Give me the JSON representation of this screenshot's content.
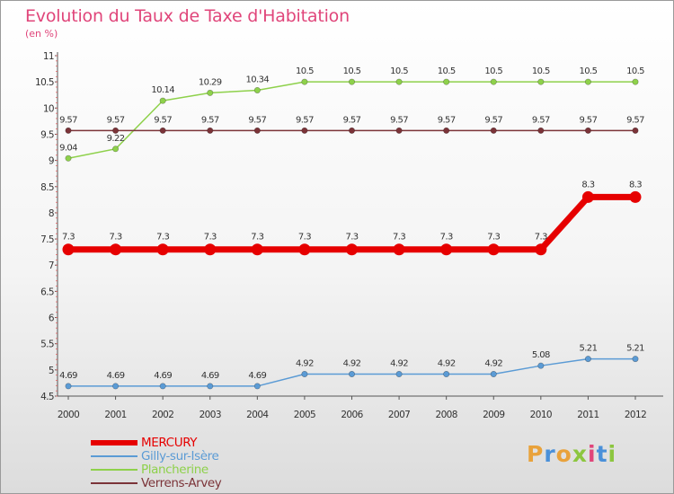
{
  "header": {
    "title": "Evolution du Taux de Taxe d'Habitation",
    "unit": "(en %)"
  },
  "logo": {
    "text": "Proxiti",
    "colors": [
      "#e9a23b",
      "#4a90d9",
      "#e9a23b",
      "#8cc63f",
      "#e0457a",
      "#4a90d9",
      "#8cc63f"
    ]
  },
  "chart_data": {
    "type": "line",
    "title": "Evolution du Taux de Taxe d'Habitation",
    "ylabel": "(en %)",
    "xlabel": "",
    "ylim": [
      4.5,
      11
    ],
    "yticks": [
      {
        "v": 4.5,
        "t": "4.5"
      },
      {
        "v": 5,
        "t": "5"
      },
      {
        "v": 5.5,
        "t": "5.5"
      },
      {
        "v": 6,
        "t": "6"
      },
      {
        "v": 6.5,
        "t": "6.5"
      },
      {
        "v": 7,
        "t": "7"
      },
      {
        "v": 7.5,
        "t": "7.5"
      },
      {
        "v": 8,
        "t": "8"
      },
      {
        "v": 8.5,
        "t": "8.5"
      },
      {
        "v": 9,
        "t": "9"
      },
      {
        "v": 9.5,
        "t": "9.5"
      },
      {
        "v": 10,
        "t": "10"
      },
      {
        "v": 10.5,
        "t": "10.5"
      },
      {
        "v": 11,
        "t": "11"
      }
    ],
    "categories": [
      "2000",
      "2001",
      "2002",
      "2003",
      "2004",
      "2005",
      "2006",
      "2007",
      "2008",
      "2009",
      "2010",
      "2011",
      "2012"
    ],
    "grid": false,
    "series": [
      {
        "name": "MERCURY",
        "color": "#e60000",
        "emphasis": true,
        "values": [
          7.3,
          7.3,
          7.3,
          7.3,
          7.3,
          7.3,
          7.3,
          7.3,
          7.3,
          7.3,
          7.3,
          8.3,
          8.3
        ],
        "labels": [
          "7.3",
          "7.3",
          "7.3",
          "7.3",
          "7.3",
          "7.3",
          "7.3",
          "7.3",
          "7.3",
          "7.3",
          "7.3",
          "8.3",
          "8.3"
        ]
      },
      {
        "name": "Gilly-sur-Isère",
        "color": "#5b9bd5",
        "emphasis": false,
        "values": [
          4.69,
          4.69,
          4.69,
          4.69,
          4.69,
          4.92,
          4.92,
          4.92,
          4.92,
          4.92,
          5.08,
          5.21,
          5.21
        ],
        "labels": [
          "4.69",
          "4.69",
          "4.69",
          "4.69",
          "4.69",
          "4.92",
          "4.92",
          "4.92",
          "4.92",
          "4.92",
          "5.08",
          "5.21",
          "5.21"
        ]
      },
      {
        "name": "Plancherine",
        "color": "#8ed14b",
        "emphasis": false,
        "values": [
          9.04,
          9.22,
          10.14,
          10.29,
          10.34,
          10.5,
          10.5,
          10.5,
          10.5,
          10.5,
          10.5,
          10.5,
          10.5
        ],
        "labels": [
          "9.04",
          "9.22",
          "10.14",
          "10.29",
          "10.34",
          "10.5",
          "10.5",
          "10.5",
          "10.5",
          "10.5",
          "10.5",
          "10.5",
          "10.5"
        ]
      },
      {
        "name": "Verrens-Arvey",
        "color": "#7b3338",
        "emphasis": false,
        "values": [
          9.57,
          9.57,
          9.57,
          9.57,
          9.57,
          9.57,
          9.57,
          9.57,
          9.57,
          9.57,
          9.57,
          9.57,
          9.57
        ],
        "labels": [
          "9.57",
          "9.57",
          "9.57",
          "9.57",
          "9.57",
          "9.57",
          "9.57",
          "9.57",
          "9.57",
          "9.57",
          "9.57",
          "9.57",
          "9.57"
        ]
      }
    ]
  }
}
